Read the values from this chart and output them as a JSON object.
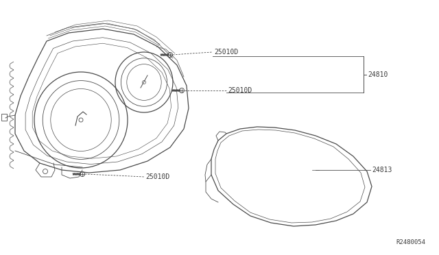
{
  "bg_color": "#ffffff",
  "line_color": "#4a4a4a",
  "text_color": "#3a3a3a",
  "label_24810": "24810",
  "label_24813": "24813",
  "label_25010D_1": "25010D",
  "label_25010D_2": "25010D",
  "label_25010D_3": "25010D",
  "ref_code": "R2480054",
  "label_fontsize": 7.0,
  "ref_fontsize": 6.5
}
